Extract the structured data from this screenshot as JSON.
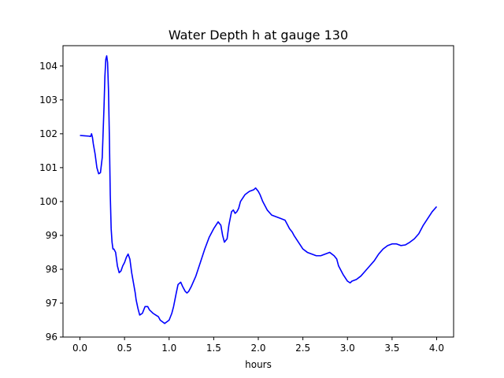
{
  "chart_data": {
    "type": "line",
    "title": "Water Depth h at gauge 130",
    "xlabel": "hours",
    "ylabel": "",
    "xlim": [
      -0.19,
      4.19
    ],
    "ylim": [
      96.0,
      104.6
    ],
    "xticks": [
      0.0,
      0.5,
      1.0,
      1.5,
      2.0,
      2.5,
      3.0,
      3.5,
      4.0
    ],
    "xtick_labels": [
      "0.0",
      "0.5",
      "1.0",
      "1.5",
      "2.0",
      "2.5",
      "3.0",
      "3.5",
      "4.0"
    ],
    "yticks": [
      96,
      97,
      98,
      99,
      100,
      101,
      102,
      103,
      104
    ],
    "ytick_labels": [
      "96",
      "97",
      "98",
      "99",
      "100",
      "101",
      "102",
      "103",
      "104"
    ],
    "grid": false,
    "legend": "none",
    "series": [
      {
        "color": "#0000ff",
        "x": [
          0.0,
          0.05,
          0.1,
          0.12,
          0.13,
          0.14,
          0.15,
          0.17,
          0.19,
          0.21,
          0.23,
          0.25,
          0.27,
          0.28,
          0.29,
          0.3,
          0.31,
          0.32,
          0.33,
          0.34,
          0.35,
          0.36,
          0.37,
          0.38,
          0.39,
          0.4,
          0.41,
          0.42,
          0.44,
          0.46,
          0.48,
          0.5,
          0.52,
          0.54,
          0.56,
          0.58,
          0.6,
          0.62,
          0.63,
          0.65,
          0.67,
          0.7,
          0.73,
          0.76,
          0.78,
          0.8,
          0.82,
          0.85,
          0.88,
          0.9,
          0.95,
          1.0,
          1.03,
          1.05,
          1.08,
          1.1,
          1.13,
          1.15,
          1.18,
          1.2,
          1.22,
          1.25,
          1.3,
          1.35,
          1.4,
          1.45,
          1.5,
          1.55,
          1.58,
          1.6,
          1.62,
          1.65,
          1.67,
          1.7,
          1.72,
          1.74,
          1.76,
          1.78,
          1.8,
          1.85,
          1.9,
          1.95,
          1.97,
          2.0,
          2.02,
          2.05,
          2.1,
          2.15,
          2.2,
          2.25,
          2.3,
          2.33,
          2.35,
          2.38,
          2.4,
          2.45,
          2.5,
          2.55,
          2.6,
          2.65,
          2.7,
          2.75,
          2.8,
          2.85,
          2.88,
          2.9,
          2.95,
          3.0,
          3.03,
          3.05,
          3.1,
          3.15,
          3.2,
          3.25,
          3.3,
          3.35,
          3.4,
          3.45,
          3.5,
          3.55,
          3.6,
          3.65,
          3.7,
          3.75,
          3.8,
          3.85,
          3.9,
          3.95,
          4.0
        ],
        "y": [
          101.95,
          101.94,
          101.93,
          101.92,
          102.0,
          101.9,
          101.7,
          101.4,
          101.0,
          100.82,
          100.85,
          101.3,
          102.8,
          103.7,
          104.2,
          104.3,
          104.1,
          103.3,
          101.9,
          100.2,
          99.2,
          98.8,
          98.6,
          98.6,
          98.55,
          98.5,
          98.3,
          98.1,
          97.9,
          97.95,
          98.1,
          98.2,
          98.35,
          98.45,
          98.3,
          97.9,
          97.6,
          97.3,
          97.1,
          96.85,
          96.65,
          96.7,
          96.9,
          96.9,
          96.8,
          96.75,
          96.7,
          96.65,
          96.6,
          96.5,
          96.4,
          96.5,
          96.7,
          96.9,
          97.3,
          97.55,
          97.62,
          97.5,
          97.35,
          97.3,
          97.35,
          97.5,
          97.8,
          98.2,
          98.6,
          98.95,
          99.2,
          99.4,
          99.3,
          99.0,
          98.8,
          98.9,
          99.3,
          99.7,
          99.75,
          99.65,
          99.7,
          99.8,
          100.0,
          100.2,
          100.3,
          100.35,
          100.4,
          100.3,
          100.2,
          100.0,
          99.75,
          99.6,
          99.55,
          99.5,
          99.45,
          99.3,
          99.2,
          99.1,
          99.0,
          98.8,
          98.6,
          98.5,
          98.45,
          98.4,
          98.4,
          98.45,
          98.5,
          98.4,
          98.3,
          98.1,
          97.85,
          97.65,
          97.6,
          97.65,
          97.7,
          97.8,
          97.95,
          98.1,
          98.25,
          98.45,
          98.6,
          98.7,
          98.75,
          98.75,
          98.7,
          98.72,
          98.8,
          98.9,
          99.05,
          99.3,
          99.5,
          99.7,
          99.85
        ]
      }
    ]
  }
}
